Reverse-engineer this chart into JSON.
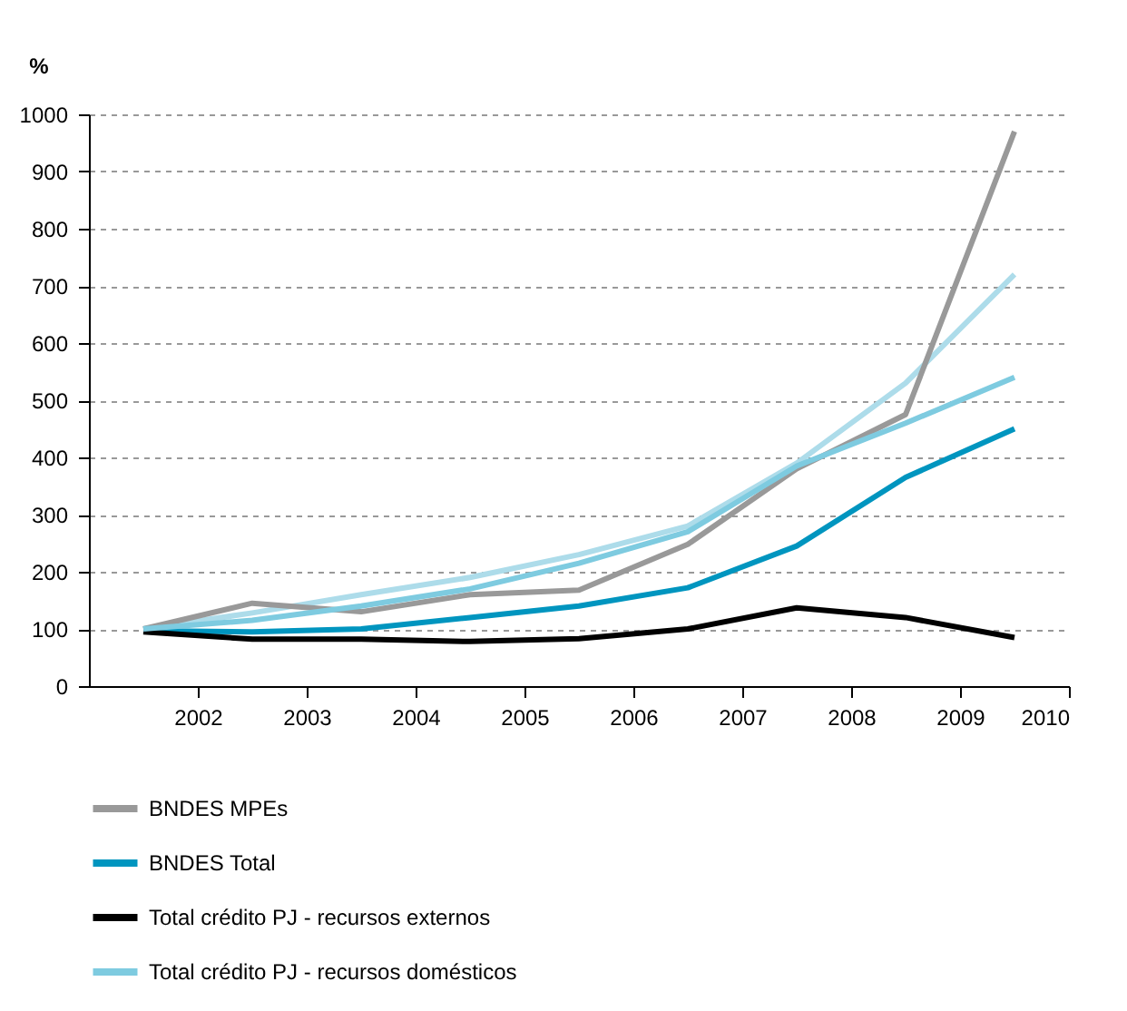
{
  "chart_data": {
    "type": "line",
    "ylabel": "%",
    "x": [
      2001.5,
      2002.5,
      2003.5,
      2004.5,
      2005.5,
      2006.5,
      2007.5,
      2008.5,
      2009.5
    ],
    "xlim": [
      2001,
      2010
    ],
    "xticks": [
      2002,
      2003,
      2004,
      2005,
      2006,
      2007,
      2008,
      2009,
      2010
    ],
    "ylim": [
      0,
      1000
    ],
    "yticks": [
      0,
      100,
      200,
      300,
      400,
      500,
      600,
      700,
      800,
      900,
      1000
    ],
    "grid": "y",
    "legend": "bottom",
    "line_style": "solid",
    "marker": "none",
    "series": [
      {
        "color": "#addcea",
        "values": [
          100,
          128,
          160,
          190,
          230,
          280,
          390,
          530,
          720
        ]
      },
      {
        "name": "BNDES MPEs",
        "color": "#999999",
        "values": [
          100,
          145,
          130,
          160,
          168,
          248,
          380,
          475,
          970
        ]
      },
      {
        "name": "BNDES Total",
        "color": "#0095bf",
        "values": [
          97,
          95,
          100,
          120,
          140,
          172,
          245,
          365,
          450
        ]
      },
      {
        "name": "Total crédito PJ - recursos externos",
        "color": "#000000",
        "values": [
          95,
          82,
          82,
          78,
          83,
          100,
          137,
          120,
          85
        ]
      },
      {
        "name": "Total crédito PJ - recursos domésticos",
        "color": "#7ecbe0",
        "values": [
          100,
          115,
          140,
          170,
          215,
          270,
          385,
          460,
          540
        ]
      }
    ]
  }
}
